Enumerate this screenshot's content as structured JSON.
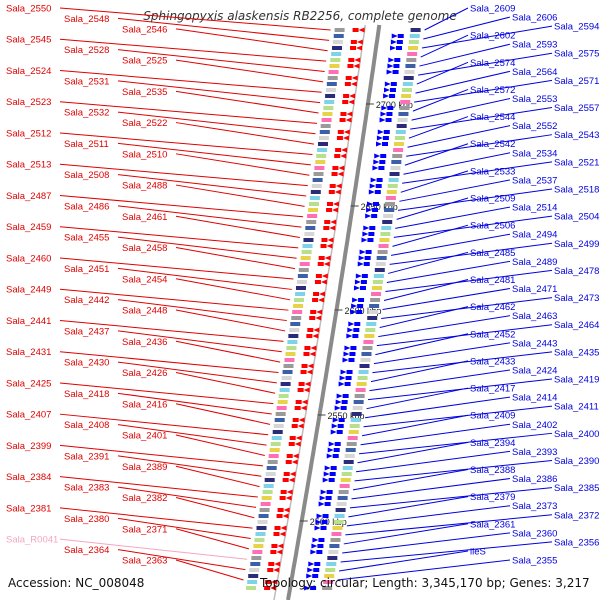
{
  "title": "Sphingopyxis alaskensis RB2256, complete genome",
  "footer": {
    "accession": "Accession: NC_008048",
    "topology": "Topology: circular; Length: 3,345,170 bp; Genes: 3,217"
  },
  "colors": {
    "left_label": "#e00000",
    "left_rna_label": "#f4a6c0",
    "right_label": "#0000e0",
    "backbone": "#8a8a8a",
    "forward_arrow": "#ff0000",
    "reverse_arrow": "#0000ff"
  },
  "ticks": [
    "2700 kbp",
    "2650 kbp",
    "2600 kbp",
    "2550 kbp",
    "2500 kbp"
  ],
  "left_labels": [
    "Sala_2550",
    "Sala_2548",
    "Sala_2546",
    "Sala_2545",
    "Sala_2528",
    "Sala_2525",
    "Sala_2524",
    "Sala_2531",
    "Sala_2535",
    "Sala_2523",
    "Sala_2532",
    "Sala_2522",
    "Sala_2512",
    "Sala_2511",
    "Sala_2510",
    "Sala_2513",
    "Sala_2508",
    "Sala_2488",
    "Sala_2487",
    "Sala_2486",
    "Sala_2461",
    "Sala_2459",
    "Sala_2455",
    "Sala_2458",
    "Sala_2460",
    "Sala_2451",
    "Sala_2454",
    "Sala_2449",
    "Sala_2442",
    "Sala_2448",
    "Sala_2441",
    "Sala_2437",
    "Sala_2436",
    "Sala_2431",
    "Sala_2430",
    "Sala_2426",
    "Sala_2425",
    "Sala_2418",
    "Sala_2416",
    "Sala_2407",
    "Sala_2408",
    "Sala_2401",
    "Sala_2399",
    "Sala_2391",
    "Sala_2389",
    "Sala_2384",
    "Sala_2383",
    "Sala_2382",
    "Sala_2381",
    "Sala_2380",
    "Sala_2371",
    "Sala_R0041",
    "Sala_2364",
    "Sala_2363"
  ],
  "right_labels": [
    "Sala_2609",
    "Sala_2606",
    "Sala_2594",
    "Sala_2602",
    "Sala_2593",
    "Sala_2575",
    "Sala_2574",
    "Sala_2564",
    "Sala_2571",
    "Sala_2572",
    "Sala_2553",
    "Sala_2557",
    "Sala_2544",
    "Sala_2552",
    "Sala_2543",
    "Sala_2542",
    "Sala_2534",
    "Sala_2521",
    "Sala_2533",
    "Sala_2537",
    "Sala_2518",
    "Sala_2509",
    "Sala_2514",
    "Sala_2504",
    "Sala_2506",
    "Sala_2494",
    "Sala_2499",
    "Sala_2485",
    "Sala_2489",
    "Sala_2478",
    "Sala_2481",
    "Sala_2471",
    "Sala_2473",
    "Sala_2462",
    "Sala_2463",
    "Sala_2464",
    "Sala_2452",
    "Sala_2443",
    "Sala_2435",
    "Sala_2433",
    "Sala_2424",
    "Sala_2419",
    "Sala_2417",
    "Sala_2414",
    "Sala_2411",
    "Sala_2409",
    "Sala_2402",
    "Sala_2400",
    "Sala_2394",
    "Sala_2393",
    "Sala_2390",
    "Sala_2388",
    "Sala_2386",
    "Sala_2385",
    "Sala_2379",
    "Sala_2373",
    "Sala_2372",
    "Sala_2361",
    "Sala_2360",
    "Sala_2356",
    "ileS",
    "Sala_2355"
  ]
}
